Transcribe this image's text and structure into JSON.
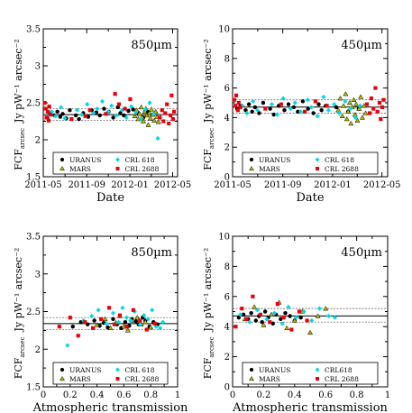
{
  "chart_data": [
    {
      "type": "scatter",
      "panel_label": "850µm",
      "xlabel": "Date",
      "ylabel": "Jy pW⁻¹ arcsec⁻²",
      "ylabel_prefix": "FCF",
      "ylabel_sub": "arcsec",
      "x_kind": "date",
      "xlim": [
        "2011-05-01",
        "2012-05-15"
      ],
      "ylim": [
        1.5,
        3.5
      ],
      "x_ticks": [
        "2011-05",
        "2011-09",
        "2012-01",
        "2012-05"
      ],
      "y_ticks": [
        "1.5",
        "2",
        "2.5",
        "3",
        "3.5"
      ],
      "hlines": {
        "mean": 2.34,
        "upper": 2.42,
        "lower": 2.26
      },
      "legend": {
        "placement": "bottom",
        "entries": [
          "URANUS",
          "CRL 618",
          "MARS",
          "CRL 2688"
        ]
      },
      "series": [
        {
          "name": "URANUS",
          "marker": "circle",
          "color": "#000000",
          "x": [
            "2011-05-12",
            "2011-05-20",
            "2011-06-02",
            "2011-06-10",
            "2011-06-18",
            "2011-06-25",
            "2011-07-05",
            "2011-07-15",
            "2011-08-01",
            "2011-08-10",
            "2011-08-22",
            "2011-09-05",
            "2011-09-15",
            "2011-09-28",
            "2011-10-08",
            "2011-10-20",
            "2011-11-02",
            "2011-11-15",
            "2011-11-28",
            "2011-12-05",
            "2011-12-15",
            "2011-12-28",
            "2012-01-10",
            "2012-01-25",
            "2012-02-08",
            "2012-02-20",
            "2012-03-05"
          ],
          "y": [
            2.3,
            2.36,
            2.33,
            2.38,
            2.31,
            2.35,
            2.29,
            2.4,
            2.33,
            2.28,
            2.36,
            2.31,
            2.4,
            2.37,
            2.33,
            2.42,
            2.38,
            2.3,
            2.44,
            2.36,
            2.33,
            2.39,
            2.41,
            2.36,
            2.3,
            2.38,
            2.34
          ]
        },
        {
          "name": "MARS",
          "marker": "triangle",
          "color": "#b5b800",
          "x": [
            "2012-01-15",
            "2012-01-20",
            "2012-01-25",
            "2012-01-28",
            "2012-02-02",
            "2012-02-05",
            "2012-02-08",
            "2012-02-12",
            "2012-02-15",
            "2012-02-18",
            "2012-02-22",
            "2012-02-25",
            "2012-02-28",
            "2012-03-02",
            "2012-03-06",
            "2012-03-10",
            "2012-03-14",
            "2012-03-18",
            "2012-03-22"
          ],
          "y": [
            2.32,
            2.4,
            2.28,
            2.35,
            2.44,
            2.3,
            2.25,
            2.38,
            2.42,
            2.33,
            2.2,
            2.36,
            2.29,
            2.41,
            2.34,
            2.26,
            2.38,
            2.31,
            2.24
          ]
        },
        {
          "name": "CRL 618",
          "marker": "diamond",
          "color": "#00d8e8",
          "x": [
            "2011-05-25",
            "2011-06-05",
            "2011-06-20",
            "2011-07-01",
            "2011-08-05",
            "2011-08-18",
            "2011-09-02",
            "2011-09-20",
            "2011-10-01",
            "2011-10-15",
            "2011-11-01",
            "2011-11-10",
            "2011-11-25",
            "2011-12-10",
            "2011-12-22",
            "2012-01-05",
            "2012-01-18",
            "2012-02-01",
            "2012-02-14",
            "2012-02-26",
            "2012-03-08",
            "2012-03-20",
            "2012-03-28"
          ],
          "y": [
            2.38,
            2.32,
            2.44,
            2.29,
            2.4,
            2.34,
            2.48,
            2.36,
            2.42,
            2.52,
            2.38,
            2.46,
            2.33,
            2.4,
            2.3,
            2.45,
            2.37,
            2.28,
            2.41,
            2.5,
            2.35,
            2.02,
            2.3
          ]
        },
        {
          "name": "CRL 2688",
          "marker": "square",
          "color": "#e8000b",
          "x": [
            "2011-05-05",
            "2011-05-08",
            "2011-05-10",
            "2011-05-14",
            "2011-05-16",
            "2011-05-18",
            "2011-05-22",
            "2011-07-20",
            "2011-08-28",
            "2011-09-10",
            "2011-10-25",
            "2011-11-20",
            "2011-12-01",
            "2011-12-18",
            "2012-01-02",
            "2012-03-25",
            "2012-04-01",
            "2012-04-05",
            "2012-04-10",
            "2012-04-15",
            "2012-04-20",
            "2012-04-25",
            "2012-04-28",
            "2012-05-02",
            "2012-05-05"
          ],
          "y": [
            2.5,
            2.42,
            2.3,
            2.38,
            2.26,
            2.45,
            2.34,
            2.28,
            2.32,
            2.4,
            2.35,
            2.62,
            2.48,
            2.42,
            2.55,
            2.3,
            2.4,
            2.25,
            2.36,
            2.48,
            2.22,
            2.33,
            2.6,
            2.28,
            2.38
          ]
        }
      ]
    },
    {
      "type": "scatter",
      "panel_label": "450µm",
      "xlabel": "Date",
      "ylabel": "Jy pW⁻¹ arcsec⁻²",
      "ylabel_prefix": "FCF",
      "ylabel_sub": "arcsec",
      "x_kind": "date",
      "xlim": [
        "2011-05-01",
        "2012-05-15"
      ],
      "ylim": [
        0,
        10
      ],
      "x_ticks": [
        "2011-05",
        "2011-09",
        "2012-01",
        "2012-05"
      ],
      "y_ticks": [
        "0",
        "2",
        "4",
        "6",
        "8",
        "10"
      ],
      "hlines": {
        "mean": 4.71,
        "upper": 5.2,
        "lower": 4.3
      },
      "legend": {
        "placement": "bottom",
        "entries": [
          "URANUS",
          "CRL 618",
          "MARS",
          "CRL 2688"
        ]
      },
      "series": [
        {
          "name": "URANUS",
          "marker": "circle",
          "color": "#000000",
          "x": [
            "2011-05-12",
            "2011-05-20",
            "2011-06-02",
            "2011-06-10",
            "2011-06-18",
            "2011-06-25",
            "2011-07-05",
            "2011-07-15",
            "2011-08-01",
            "2011-08-10",
            "2011-08-22",
            "2011-09-05",
            "2011-09-15",
            "2011-09-28",
            "2011-10-08",
            "2011-10-20",
            "2011-11-02",
            "2011-11-15",
            "2011-11-28",
            "2011-12-05",
            "2011-12-15",
            "2012-01-10",
            "2012-02-08",
            "2012-03-05"
          ],
          "y": [
            4.6,
            4.8,
            4.5,
            4.9,
            4.4,
            4.7,
            4.3,
            5.0,
            4.6,
            4.2,
            4.8,
            4.5,
            4.9,
            4.7,
            4.4,
            5.1,
            4.6,
            4.3,
            4.9,
            4.5,
            4.8,
            4.7,
            4.4,
            4.6
          ]
        },
        {
          "name": "MARS",
          "marker": "triangle",
          "color": "#b5b800",
          "x": [
            "2012-01-15",
            "2012-01-20",
            "2012-01-25",
            "2012-01-28",
            "2012-02-02",
            "2012-02-05",
            "2012-02-08",
            "2012-02-12",
            "2012-02-15",
            "2012-02-18",
            "2012-02-22",
            "2012-02-25",
            "2012-02-28",
            "2012-03-02",
            "2012-03-06",
            "2012-03-10",
            "2012-03-14",
            "2012-03-18",
            "2012-03-22"
          ],
          "y": [
            4.5,
            5.3,
            4.1,
            4.8,
            5.6,
            3.9,
            4.4,
            5.0,
            3.6,
            4.7,
            5.2,
            4.2,
            4.9,
            3.8,
            4.6,
            5.4,
            4.0,
            4.8,
            4.3
          ]
        },
        {
          "name": "CRL 618",
          "marker": "diamond",
          "color": "#00d8e8",
          "x": [
            "2011-05-25",
            "2011-06-05",
            "2011-06-20",
            "2011-07-01",
            "2011-08-05",
            "2011-08-18",
            "2011-09-02",
            "2011-09-20",
            "2011-10-01",
            "2011-10-15",
            "2011-11-01",
            "2011-11-10",
            "2011-11-25",
            "2011-12-10",
            "2011-12-22",
            "2012-01-05",
            "2012-01-18",
            "2012-02-01",
            "2012-02-14",
            "2012-02-26",
            "2012-03-08"
          ],
          "y": [
            4.8,
            4.3,
            5.1,
            4.5,
            4.9,
            4.2,
            5.3,
            4.6,
            5.0,
            4.4,
            5.2,
            4.7,
            4.1,
            5.4,
            4.5,
            4.9,
            4.3,
            5.1,
            4.6,
            4.0,
            4.8
          ]
        },
        {
          "name": "CRL 2688",
          "marker": "square",
          "color": "#e8000b",
          "x": [
            "2011-05-05",
            "2011-05-08",
            "2011-05-10",
            "2011-05-14",
            "2011-05-16",
            "2011-05-20",
            "2011-07-20",
            "2011-08-28",
            "2011-10-25",
            "2011-11-20",
            "2011-12-18",
            "2012-03-25",
            "2012-04-01",
            "2012-04-05",
            "2012-04-10",
            "2012-04-15",
            "2012-04-20",
            "2012-04-25",
            "2012-04-28",
            "2012-05-02",
            "2012-05-05"
          ],
          "y": [
            5.2,
            4.8,
            5.5,
            4.5,
            5.0,
            4.7,
            4.6,
            4.9,
            4.4,
            5.1,
            4.8,
            4.9,
            4.3,
            5.3,
            4.6,
            6.0,
            4.4,
            5.0,
            3.9,
            4.7,
            5.2
          ]
        }
      ]
    },
    {
      "type": "scatter",
      "panel_label": "850µm",
      "xlabel": "Atmospheric transmission",
      "ylabel": "Jy pW⁻¹ arcsec⁻²",
      "ylabel_prefix": "FCF",
      "ylabel_sub": "arcsec",
      "x_kind": "number",
      "xlim": [
        0,
        1
      ],
      "ylim": [
        1.5,
        3.5
      ],
      "x_ticks": [
        "0",
        "0.2",
        "0.4",
        "0.6",
        "0.8",
        "1"
      ],
      "y_ticks": [
        "1.5",
        "2",
        "2.5",
        "3",
        "3.5"
      ],
      "hlines": {
        "mean": 2.34,
        "upper": 2.42,
        "lower": 2.26
      },
      "legend": {
        "placement": "bottom",
        "entries": [
          "URANUS",
          "CRL 618",
          "MARS",
          "CRL 2688"
        ]
      },
      "series": [
        {
          "name": "URANUS",
          "marker": "circle",
          "color": "#000000",
          "x": [
            0.22,
            0.28,
            0.33,
            0.38,
            0.42,
            0.45,
            0.48,
            0.52,
            0.55,
            0.58,
            0.61,
            0.64,
            0.66,
            0.69,
            0.71,
            0.74,
            0.76,
            0.79,
            0.82,
            0.85
          ],
          "y": [
            2.3,
            2.36,
            2.33,
            2.38,
            2.31,
            2.35,
            2.29,
            2.4,
            2.33,
            2.28,
            2.36,
            2.31,
            2.4,
            2.37,
            2.33,
            2.42,
            2.38,
            2.3,
            2.36,
            2.33
          ]
        },
        {
          "name": "MARS",
          "marker": "triangle",
          "color": "#b5b800",
          "x": [
            0.4,
            0.46,
            0.5,
            0.54,
            0.57,
            0.6,
            0.63,
            0.66,
            0.7,
            0.73,
            0.76,
            0.8
          ],
          "y": [
            2.32,
            2.4,
            2.28,
            2.35,
            2.44,
            2.3,
            2.25,
            2.38,
            2.42,
            2.33,
            2.36,
            2.29
          ]
        },
        {
          "name": "CRL 618",
          "marker": "diamond",
          "color": "#00d8e8",
          "x": [
            0.18,
            0.3,
            0.36,
            0.41,
            0.47,
            0.52,
            0.56,
            0.59,
            0.62,
            0.65,
            0.68,
            0.72,
            0.75,
            0.78,
            0.81,
            0.84,
            0.87,
            0.89
          ],
          "y": [
            2.05,
            2.38,
            2.44,
            2.52,
            2.34,
            2.48,
            2.36,
            2.55,
            2.42,
            2.38,
            2.5,
            2.33,
            2.45,
            2.4,
            2.52,
            2.3,
            2.28,
            2.36
          ]
        },
        {
          "name": "CRL 2688",
          "marker": "square",
          "color": "#e8000b",
          "x": [
            0.12,
            0.2,
            0.26,
            0.31,
            0.37,
            0.43,
            0.49,
            0.53,
            0.57,
            0.62,
            0.67,
            0.72,
            0.77,
            0.83
          ],
          "y": [
            2.3,
            2.42,
            2.18,
            2.36,
            2.28,
            2.4,
            2.55,
            2.33,
            2.45,
            2.3,
            2.52,
            2.38,
            2.26,
            2.34
          ]
        }
      ]
    },
    {
      "type": "scatter",
      "panel_label": "450µm",
      "xlabel": "Atmospheric transmission",
      "ylabel": "Jy pW⁻¹ arcsec⁻²",
      "ylabel_prefix": "FCF",
      "ylabel_sub": "arcsec",
      "x_kind": "number",
      "xlim": [
        0,
        1
      ],
      "ylim": [
        0,
        10
      ],
      "x_ticks": [
        "0",
        "0.2",
        "0.4",
        "0.6",
        "0.8",
        "1"
      ],
      "y_ticks": [
        "0",
        "2",
        "4",
        "6",
        "8",
        "10"
      ],
      "hlines": {
        "mean": 4.71,
        "upper": 5.2,
        "lower": 4.3
      },
      "legend": {
        "placement": "bottom",
        "entries": [
          "URANUS",
          "CRL618",
          "MARS",
          "CRL 2688"
        ]
      },
      "series": [
        {
          "name": "URANUS",
          "marker": "circle",
          "color": "#000000",
          "x": [
            0.04,
            0.07,
            0.1,
            0.12,
            0.15,
            0.17,
            0.19,
            0.21,
            0.23,
            0.26,
            0.28,
            0.31,
            0.34,
            0.37,
            0.4,
            0.44
          ],
          "y": [
            4.6,
            4.8,
            4.5,
            4.9,
            4.4,
            4.7,
            4.3,
            5.0,
            4.6,
            4.2,
            4.8,
            4.5,
            4.9,
            4.7,
            4.4,
            4.6
          ]
        },
        {
          "name": "MARS",
          "marker": "triangle",
          "color": "#b5b800",
          "x": [
            0.08,
            0.14,
            0.2,
            0.25,
            0.3,
            0.35,
            0.4,
            0.45,
            0.5,
            0.55,
            0.6
          ],
          "y": [
            4.5,
            5.3,
            4.1,
            4.8,
            5.6,
            3.9,
            4.4,
            5.0,
            3.6,
            4.7,
            5.2
          ]
        },
        {
          "name": "CRL618",
          "marker": "diamond",
          "color": "#00d8e8",
          "x": [
            0.05,
            0.11,
            0.16,
            0.22,
            0.27,
            0.32,
            0.36,
            0.41,
            0.46,
            0.51,
            0.56,
            0.62,
            0.66
          ],
          "y": [
            4.8,
            4.3,
            5.1,
            4.5,
            4.9,
            4.2,
            5.3,
            4.6,
            5.0,
            4.4,
            5.2,
            4.7,
            4.6
          ]
        },
        {
          "name": "CRL 2688",
          "marker": "square",
          "color": "#e8000b",
          "x": [
            0.02,
            0.06,
            0.09,
            0.13,
            0.18,
            0.24,
            0.29,
            0.33,
            0.38,
            0.43,
            0.48
          ],
          "y": [
            4.0,
            5.2,
            4.5,
            6.0,
            4.8,
            4.3,
            5.5,
            4.6,
            3.8,
            5.0,
            4.4
          ]
        }
      ]
    }
  ]
}
